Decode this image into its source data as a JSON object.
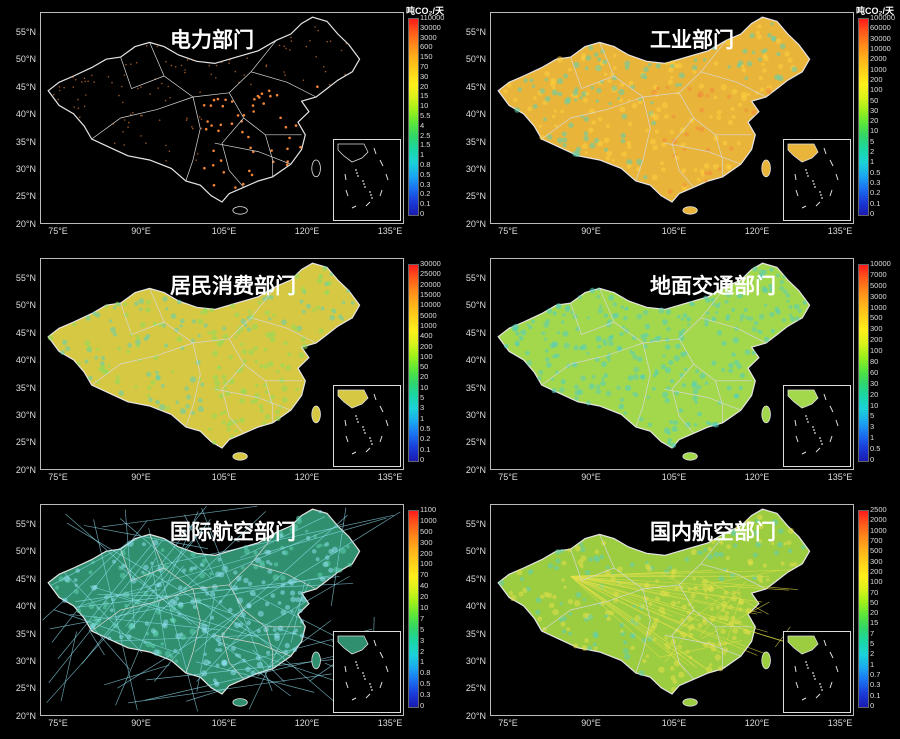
{
  "unit_label": "吨CO₂/天",
  "lat_labels": [
    "55°N",
    "50°N",
    "45°N",
    "40°N",
    "35°N",
    "30°N",
    "25°N",
    "20°N"
  ],
  "lon_labels": [
    "75°E",
    "90°E",
    "105°E",
    "120°E",
    "135°E"
  ],
  "panels": [
    {
      "id": "power",
      "title": "电力部门",
      "fill": "none",
      "scatter": "#ff8a3a",
      "legend": [
        "110000",
        "30000",
        "3000",
        "600",
        "150",
        "70",
        "30",
        "20",
        "15",
        "10",
        "5.5",
        "4",
        "2.5",
        "1.5",
        "1",
        "0.8",
        "0.5",
        "0.3",
        "0.2",
        "0.1",
        "0"
      ]
    },
    {
      "id": "industry",
      "title": "工业部门",
      "fill": "#e9b43a",
      "scatter": "#ffd23f",
      "legend": [
        "100000",
        "60000",
        "30000",
        "10000",
        "2000",
        "1000",
        "200",
        "100",
        "50",
        "30",
        "20",
        "10",
        "5",
        "2",
        "1",
        "0.5",
        "0.3",
        "0.2",
        "0.1",
        "0"
      ]
    },
    {
      "id": "residential",
      "title": "居民消费部门",
      "fill": "#d7c843",
      "scatter": "#8fdc5a",
      "legend": [
        "30000",
        "25000",
        "20000",
        "15000",
        "10000",
        "5000",
        "1000",
        "400",
        "200",
        "100",
        "50",
        "20",
        "10",
        "5",
        "3",
        "1",
        "0.5",
        "0.2",
        "0.1",
        "0"
      ]
    },
    {
      "id": "ground-transport",
      "title": "地面交通部门",
      "fill": "#a4d84c",
      "scatter": "#4fd0c0",
      "legend": [
        "10000",
        "7000",
        "5000",
        "3000",
        "1000",
        "500",
        "300",
        "200",
        "100",
        "80",
        "60",
        "30",
        "20",
        "10",
        "5",
        "3",
        "1",
        "0.5",
        "0"
      ]
    },
    {
      "id": "intl-aviation",
      "title": "国际航空部门",
      "fill": "#2f8f6e",
      "scatter": "#8fe0f0",
      "legend": [
        "1100",
        "1000",
        "500",
        "300",
        "200",
        "100",
        "70",
        "40",
        "20",
        "10",
        "7",
        "5",
        "3",
        "2",
        "1",
        "0.8",
        "0.5",
        "0.3",
        "0"
      ]
    },
    {
      "id": "domestic-aviation",
      "title": "国内航空部门",
      "fill": "#9ccc40",
      "scatter": "#e4e04a",
      "legend": [
        "2500",
        "2000",
        "1000",
        "700",
        "500",
        "300",
        "200",
        "100",
        "70",
        "50",
        "20",
        "15",
        "7",
        "5",
        "2",
        "1",
        "0.7",
        "0.3",
        "0.1",
        "0"
      ]
    }
  ]
}
